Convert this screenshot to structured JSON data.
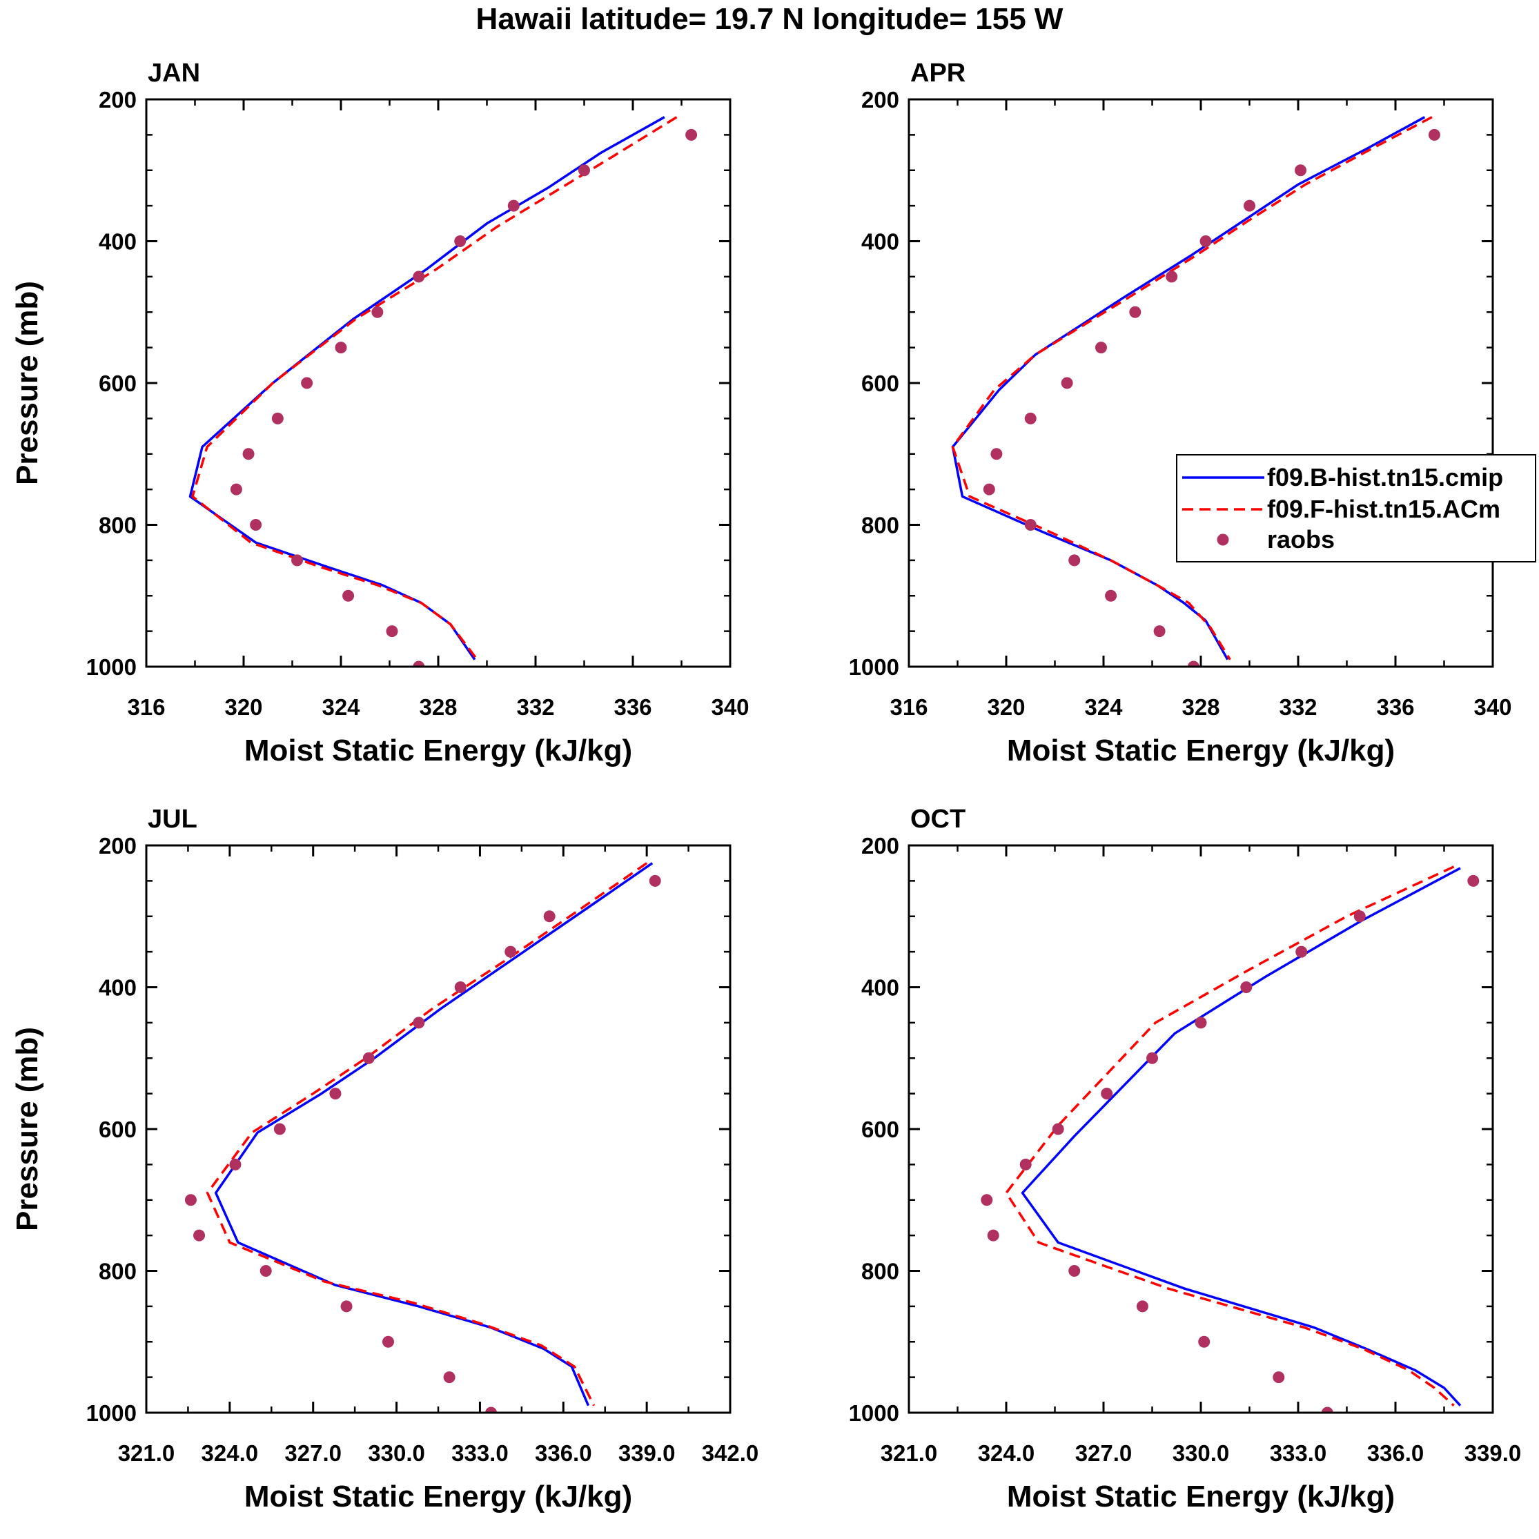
{
  "figure_title": "Hawaii  latitude= 19.7 N longitude= 155 W",
  "legend": {
    "entries": [
      {
        "label": "f09.B-hist.tn15.cmip",
        "style": "solid",
        "color": "#0000ff"
      },
      {
        "label": "f09.F-hist.tn15.ACm",
        "style": "dashed",
        "color": "#ff0000"
      },
      {
        "label": "raobs",
        "style": "marker",
        "color": "#b03060"
      }
    ]
  },
  "chart_data": [
    {
      "type": "line",
      "title": "JAN",
      "xlabel": "Moist Static Energy (kJ/kg)",
      "ylabel": "Pressure (mb)",
      "xlim": [
        316,
        340
      ],
      "ylim": [
        1000,
        200
      ],
      "y_inverted": true,
      "xticks": [
        316,
        320,
        324,
        328,
        332,
        336,
        340
      ],
      "xtick_labels": [
        "316",
        "320",
        "324",
        "328",
        "332",
        "336",
        "340"
      ],
      "yticks": [
        200,
        400,
        600,
        800,
        1000
      ],
      "ytick_labels": [
        "200",
        "400",
        "600",
        "800",
        "1000"
      ],
      "series": [
        {
          "name": "f09.B-hist.tn15.cmip",
          "x": [
            337.3,
            334.7,
            332.5,
            330.0,
            327.5,
            324.5,
            321.2,
            318.3,
            317.8,
            320.5,
            323.5,
            325.7,
            327.3,
            328.5,
            329.5
          ],
          "y": [
            225,
            275,
            325,
            375,
            440,
            510,
            600,
            690,
            760,
            825,
            860,
            885,
            910,
            940,
            990
          ]
        },
        {
          "name": "f09.F-hist.tn15.ACm",
          "x": [
            337.8,
            335.2,
            332.8,
            330.4,
            327.9,
            324.6,
            321.2,
            318.5,
            317.9,
            320.3,
            323.2,
            325.5,
            327.3,
            328.5,
            329.6
          ],
          "y": [
            225,
            280,
            330,
            380,
            440,
            510,
            600,
            690,
            760,
            825,
            860,
            885,
            910,
            940,
            990
          ]
        },
        {
          "name": "raobs",
          "x": [
            338.4,
            334.0,
            331.1,
            328.9,
            327.2,
            325.5,
            324.0,
            322.6,
            321.4,
            320.2,
            319.7,
            320.5,
            322.2,
            324.3,
            326.1,
            327.2
          ],
          "y": [
            250,
            300,
            350,
            400,
            450,
            500,
            550,
            600,
            650,
            700,
            750,
            800,
            850,
            900,
            950,
            1000
          ]
        }
      ]
    },
    {
      "type": "line",
      "title": "APR",
      "xlabel": "Moist Static Energy (kJ/kg)",
      "ylabel": "",
      "xlim": [
        316,
        340
      ],
      "ylim": [
        1000,
        200
      ],
      "y_inverted": true,
      "xticks": [
        316,
        320,
        324,
        328,
        332,
        336,
        340
      ],
      "xtick_labels": [
        "316",
        "320",
        "324",
        "328",
        "332",
        "336",
        "340"
      ],
      "yticks": [
        200,
        400,
        600,
        800,
        1000
      ],
      "ytick_labels": [
        "200",
        "400",
        "600",
        "800",
        "1000"
      ],
      "series": [
        {
          "name": "f09.B-hist.tn15.cmip",
          "x": [
            337.2,
            334.8,
            332.0,
            329.8,
            327.6,
            324.8,
            321.2,
            319.7,
            317.8,
            318.2,
            321.5,
            324.3,
            326.2,
            327.3,
            328.2,
            329.1
          ],
          "y": [
            225,
            270,
            320,
            370,
            420,
            480,
            560,
            610,
            690,
            760,
            810,
            850,
            885,
            910,
            935,
            990
          ]
        },
        {
          "name": "f09.F-hist.tn15.ACm",
          "x": [
            337.5,
            335.0,
            332.3,
            330.0,
            327.8,
            325.0,
            321.2,
            319.5,
            317.8,
            318.5,
            321.8,
            324.3,
            326.2,
            327.5,
            328.4,
            329.2
          ],
          "y": [
            225,
            270,
            320,
            370,
            420,
            480,
            560,
            610,
            690,
            760,
            810,
            850,
            885,
            910,
            945,
            990
          ]
        },
        {
          "name": "raobs",
          "x": [
            337.6,
            332.1,
            330.0,
            328.2,
            326.8,
            325.3,
            323.9,
            322.5,
            321.0,
            319.6,
            319.3,
            321.0,
            322.8,
            324.3,
            326.3,
            327.7
          ],
          "y": [
            250,
            300,
            350,
            400,
            450,
            500,
            550,
            600,
            650,
            700,
            750,
            800,
            850,
            900,
            950,
            1000
          ]
        }
      ]
    },
    {
      "type": "line",
      "title": "JUL",
      "xlabel": "Moist Static Energy (kJ/kg)",
      "ylabel": "Pressure (mb)",
      "xlim": [
        321,
        342
      ],
      "ylim": [
        1000,
        200
      ],
      "y_inverted": true,
      "xticks": [
        321,
        324,
        327,
        330,
        333,
        336,
        339,
        342
      ],
      "xtick_labels": [
        "321.0",
        "324.0",
        "327.0",
        "330.0",
        "333.0",
        "336.0",
        "339.0",
        "342.0"
      ],
      "yticks": [
        200,
        400,
        600,
        800,
        1000
      ],
      "ytick_labels": [
        "200",
        "400",
        "600",
        "800",
        "1000"
      ],
      "series": [
        {
          "name": "f09.B-hist.tn15.cmip",
          "x": [
            339.2,
            336.8,
            334.2,
            331.6,
            329.2,
            327.3,
            325.0,
            323.5,
            324.3,
            327.8,
            330.8,
            333.4,
            335.3,
            336.3,
            336.9
          ],
          "y": [
            225,
            290,
            360,
            430,
            500,
            550,
            605,
            690,
            760,
            820,
            850,
            880,
            910,
            935,
            990
          ]
        },
        {
          "name": "f09.F-hist.tn15.ACm",
          "x": [
            339.0,
            336.6,
            334.0,
            331.3,
            328.9,
            327.0,
            324.8,
            323.2,
            324.0,
            327.4,
            330.6,
            333.1,
            335.2,
            336.4,
            337.1
          ],
          "y": [
            225,
            290,
            360,
            430,
            500,
            550,
            605,
            690,
            760,
            815,
            845,
            875,
            905,
            935,
            990
          ]
        },
        {
          "name": "raobs",
          "x": [
            339.3,
            335.5,
            334.1,
            332.3,
            330.8,
            329.0,
            327.8,
            325.8,
            324.2,
            322.6,
            322.9,
            325.3,
            328.2,
            329.7,
            331.9,
            333.4
          ],
          "y": [
            250,
            300,
            350,
            400,
            450,
            500,
            550,
            600,
            650,
            700,
            750,
            800,
            850,
            900,
            950,
            1000
          ]
        }
      ]
    },
    {
      "type": "line",
      "title": "OCT",
      "xlabel": "Moist Static Energy (kJ/kg)",
      "ylabel": "",
      "xlim": [
        321,
        339
      ],
      "ylim": [
        1000,
        200
      ],
      "y_inverted": true,
      "xticks": [
        321,
        324,
        327,
        330,
        333,
        336,
        339
      ],
      "xtick_labels": [
        "321.0",
        "324.0",
        "327.0",
        "330.0",
        "333.0",
        "336.0",
        "339.0"
      ],
      "yticks": [
        200,
        400,
        600,
        800,
        1000
      ],
      "ytick_labels": [
        "200",
        "400",
        "600",
        "800",
        "1000"
      ],
      "series": [
        {
          "name": "f09.B-hist.tn15.cmip",
          "x": [
            338.0,
            335.0,
            332.0,
            329.2,
            326.1,
            324.5,
            325.6,
            329.5,
            333.5,
            335.1,
            336.6,
            337.5,
            338.0
          ],
          "y": [
            232,
            305,
            385,
            465,
            610,
            690,
            760,
            825,
            880,
            910,
            940,
            965,
            990
          ]
        },
        {
          "name": "f09.F-hist.tn15.ACm",
          "x": [
            337.8,
            334.5,
            331.5,
            328.6,
            325.6,
            324.0,
            325.0,
            329.0,
            333.2,
            335.0,
            336.4,
            337.2,
            337.8
          ],
          "y": [
            230,
            300,
            375,
            450,
            595,
            690,
            760,
            825,
            880,
            910,
            940,
            965,
            990
          ]
        },
        {
          "name": "raobs",
          "x": [
            338.4,
            334.9,
            333.1,
            331.4,
            330.0,
            328.5,
            327.1,
            325.6,
            324.6,
            323.4,
            323.6,
            326.1,
            328.2,
            330.1,
            332.4,
            333.9
          ],
          "y": [
            250,
            300,
            350,
            400,
            450,
            500,
            550,
            600,
            650,
            700,
            750,
            800,
            850,
            900,
            950,
            1000
          ]
        }
      ]
    }
  ]
}
